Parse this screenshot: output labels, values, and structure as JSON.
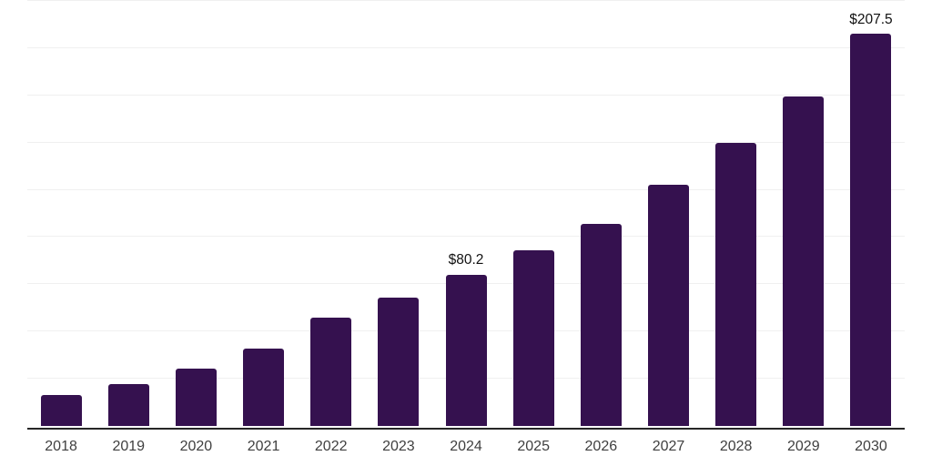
{
  "chart_data": {
    "type": "bar",
    "title": "",
    "xlabel": "",
    "ylabel": "",
    "categories": [
      "2018",
      "2019",
      "2020",
      "2021",
      "2022",
      "2023",
      "2024",
      "2025",
      "2026",
      "2027",
      "2028",
      "2029",
      "2030"
    ],
    "values": [
      16.5,
      22.4,
      30.3,
      40.9,
      57.3,
      68.0,
      80.2,
      93.0,
      107.0,
      127.6,
      150.0,
      174.4,
      207.5
    ],
    "data_labels": [
      "",
      "",
      "",
      "",
      "",
      "",
      "$80.2",
      "",
      "",
      "",
      "",
      "",
      "$207.5"
    ],
    "ylim": [
      0,
      225
    ],
    "grid_step": 25,
    "grid": true,
    "legend": false,
    "y_tick_labels_visible": false,
    "colors": {
      "bar": "#35114f",
      "grid": "#f0f0f0",
      "axis_line": "#262626",
      "tick_label": "#3f3f3f",
      "data_label": "#111111",
      "background": "#ffffff"
    }
  }
}
